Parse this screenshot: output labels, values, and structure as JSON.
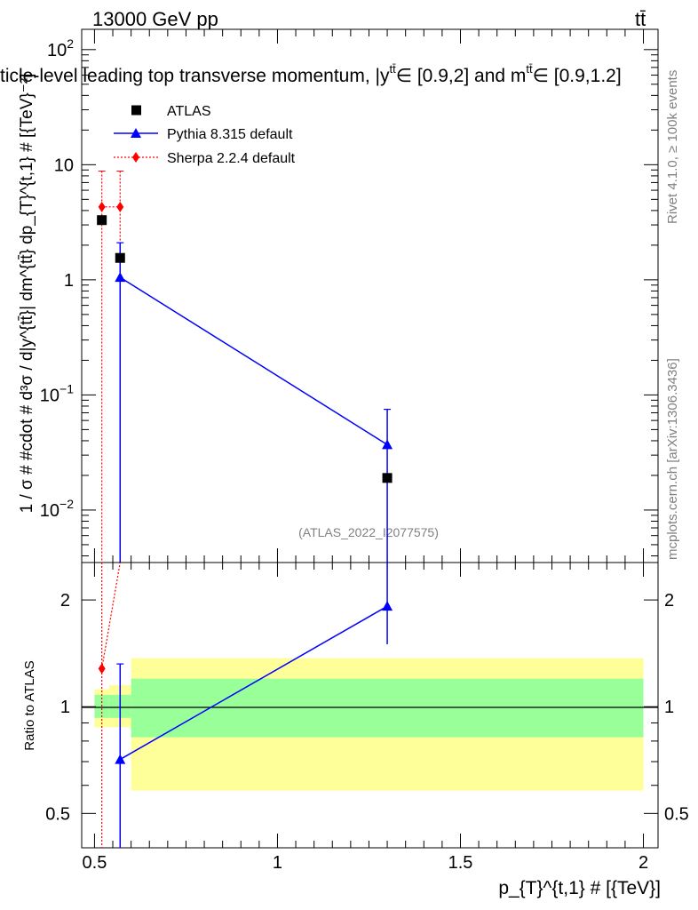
{
  "header": {
    "energy_label": "13000 GeV pp",
    "process_label": "tt̄",
    "plot_title": "ticle-level leading top transverse momentum, |y",
    "title_sup1": "tt̄",
    "title_mid": "∈ [0.9,2] and m",
    "title_sup2": "tt̄",
    "title_end": "∈ [0.9,1.2]"
  },
  "side_labels": {
    "rivet": "Rivet 4.1.0, ≥ 100k events",
    "mcplots": "mcplots.cern.ch [arXiv:1306.3436]"
  },
  "watermark": "(ATLAS_2022_I2077575)",
  "colors": {
    "atlas": "#000000",
    "pythia": "#0000ff",
    "sherpa": "#ff0000",
    "band_inner": "#99ff99",
    "band_outer": "#ffff99"
  },
  "chart_data": [
    {
      "type": "scatter",
      "panel": "main",
      "yscale": "log",
      "ylabel": "1 / σ # #cdot # d³σ / d|y^{tt̄}| dm^{tt̄} dp_{T}^{t,1} # [{TeV}⁻²]",
      "ylim": [
        0.0035,
        150
      ],
      "xlim": [
        0.465,
        2.04
      ],
      "y_ticks": [
        {
          "v": 0.01,
          "base": "10",
          "exp": "−2"
        },
        {
          "v": 0.1,
          "base": "10",
          "exp": "−1"
        },
        {
          "v": 1,
          "base": "1",
          "exp": ""
        },
        {
          "v": 10,
          "base": "10",
          "exp": ""
        },
        {
          "v": 100,
          "base": "10",
          "exp": "2"
        }
      ],
      "legend": [
        "ATLAS",
        "Pythia 8.315 default",
        "Sherpa 2.2.4 default"
      ],
      "series": [
        {
          "name": "ATLAS",
          "marker": "square",
          "x": [
            0.52,
            0.57,
            1.3
          ],
          "y": [
            3.3,
            1.55,
            0.019
          ]
        },
        {
          "name": "Pythia 8.315 default",
          "marker": "triangle",
          "x": [
            0.57,
            1.3
          ],
          "y": [
            1.05,
            0.037
          ],
          "yerr_low": [
            0.0001,
            0.0001
          ],
          "yerr_high": [
            2.1,
            0.075
          ]
        },
        {
          "name": "Sherpa 2.2.4 default",
          "marker": "diamond",
          "x": [
            0.52,
            0.57
          ],
          "y": [
            4.3,
            4.3
          ],
          "yerr_low": [
            0.0001,
            0.0001
          ],
          "yerr_high": [
            8.8,
            8.8
          ]
        }
      ]
    },
    {
      "type": "scatter",
      "panel": "ratio",
      "yscale": "log",
      "ylabel": "Ratio to ATLAS",
      "xlabel": "p_{T}^{t,1} # [{TeV}]",
      "ylim": [
        0.4,
        2.55
      ],
      "xlim": [
        0.465,
        2.04
      ],
      "y_ticks": [
        "0.5",
        "1",
        "2"
      ],
      "x_ticks": [
        "0.5",
        "1",
        "1.5",
        "2"
      ],
      "bands": [
        {
          "x0": 0.5,
          "x1": 0.54,
          "inner": [
            0.93,
            1.08
          ],
          "outer": [
            0.875,
            1.12
          ]
        },
        {
          "x0": 0.54,
          "x1": 0.6,
          "inner": [
            0.93,
            1.08
          ],
          "outer": [
            0.875,
            1.15
          ]
        },
        {
          "x0": 0.6,
          "x1": 2.0,
          "inner": [
            0.82,
            1.2
          ],
          "outer": [
            0.58,
            1.37
          ]
        }
      ],
      "series": [
        {
          "name": "Pythia 8.315 default",
          "x": [
            0.57,
            1.3
          ],
          "y": [
            0.71,
            1.92
          ],
          "yerr_low": [
            0.3,
            1.5
          ],
          "yerr_high": [
            1.32,
            4.0
          ]
        },
        {
          "name": "Sherpa 2.2.4 default",
          "x": [
            0.52
          ],
          "y": [
            1.28
          ],
          "yerr_low": [
            0.3
          ],
          "yerr_high": [
            2.7
          ]
        }
      ]
    }
  ]
}
